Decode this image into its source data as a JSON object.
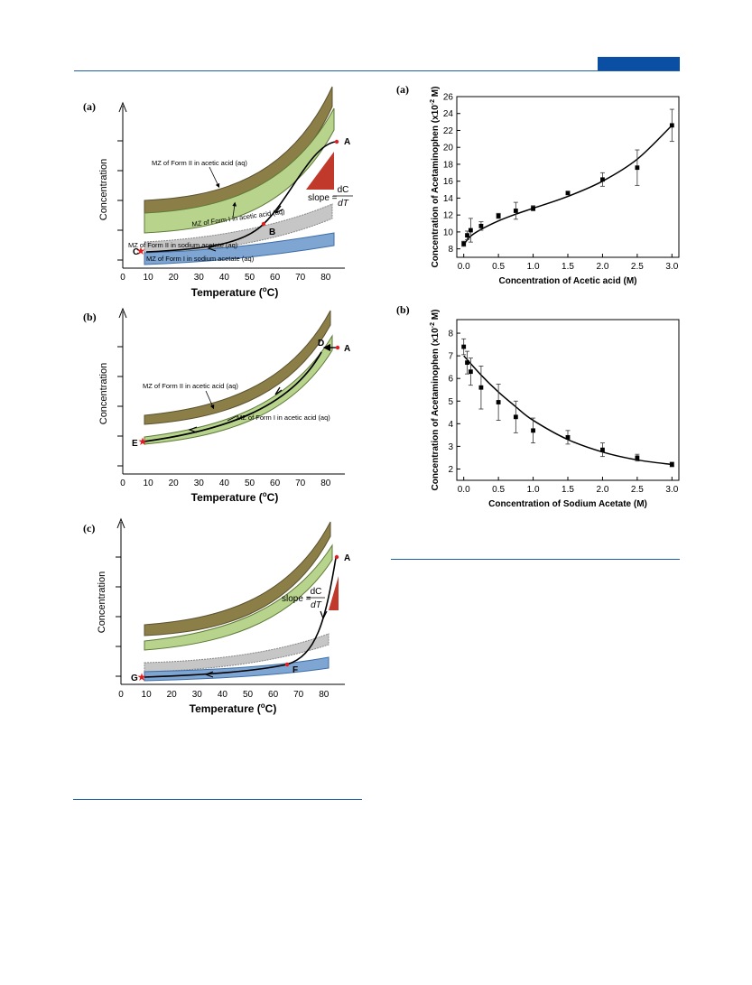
{
  "colors": {
    "rule": "#1f5ea8",
    "badge": "#0b4fa4",
    "form2_band": "#8c7e47",
    "form1_band": "#b8d48c",
    "form2_na_band": "#c6c6c6",
    "form1_na_band": "#7fa6d2",
    "slope_triangle": "#c0392b",
    "marker": "#e02020"
  },
  "left_panels": [
    {
      "tag": "(a)",
      "ylabel": "Concentration",
      "xlabel_main": "Temperature (",
      "xlabel_sup": "o",
      "xlabel_end": "C)",
      "xticks": [
        "0",
        "10",
        "20",
        "30",
        "40",
        "50",
        "60",
        "70",
        "80"
      ],
      "bands": [
        "MZ of Form II in acetic acid (aq)",
        "MZ of Form I in acetic acid (aq)",
        "MZ of Form II in sodium acetate (aq)",
        "MZ of Form I in sodium acetate (aq)"
      ],
      "points": [
        "A",
        "B",
        "C"
      ],
      "slope_label": "slope =",
      "slope_num": "dC",
      "slope_den": "dT"
    },
    {
      "tag": "(b)",
      "ylabel": "Concentration",
      "xlabel_main": "Temperature (",
      "xlabel_sup": "o",
      "xlabel_end": "C)",
      "xticks": [
        "0",
        "10",
        "20",
        "30",
        "40",
        "50",
        "60",
        "70",
        "80"
      ],
      "bands": [
        "MZ of Form II in acetic acid (aq)",
        "MZ of Form I in acetic acid (aq)"
      ],
      "points": [
        "A",
        "D",
        "E"
      ]
    },
    {
      "tag": "(c)",
      "ylabel": "Concentration",
      "xlabel_main": "Temperature (",
      "xlabel_sup": "o",
      "xlabel_end": "C)",
      "xticks": [
        "0",
        "10",
        "20",
        "30",
        "40",
        "50",
        "60",
        "70",
        "80"
      ],
      "points": [
        "A",
        "F",
        "G"
      ],
      "slope_label": "slope =",
      "slope_num": "dC",
      "slope_den": "dT"
    }
  ],
  "chart_data": [
    {
      "type": "scatter",
      "tag": "(a)",
      "xlabel_prefix": "Concentration of Acetic acid (",
      "xlabel_bold": "M",
      "xlabel_suffix": ")",
      "ylabel_prefix": "Concentration of Acetaminophen (x10",
      "ylabel_sup": "-2",
      "ylabel_suffix": " M)",
      "xlim": [
        -0.1,
        3.1
      ],
      "ylim": [
        7,
        26
      ],
      "xticks": [
        0.0,
        0.5,
        1.0,
        1.5,
        2.0,
        2.5,
        3.0
      ],
      "yticks": [
        8,
        10,
        12,
        14,
        16,
        18,
        20,
        22,
        24,
        26
      ],
      "points": [
        {
          "x": 0.0,
          "y": 8.6,
          "err": 0.3
        },
        {
          "x": 0.05,
          "y": 9.6,
          "err": 0.5
        },
        {
          "x": 0.1,
          "y": 10.2,
          "err": 1.4
        },
        {
          "x": 0.25,
          "y": 10.7,
          "err": 0.5
        },
        {
          "x": 0.5,
          "y": 11.9,
          "err": 0.3
        },
        {
          "x": 0.75,
          "y": 12.5,
          "err": 1.0
        },
        {
          "x": 1.0,
          "y": 12.8,
          "err": 0.3
        },
        {
          "x": 1.5,
          "y": 14.6,
          "err": 0.2
        },
        {
          "x": 2.0,
          "y": 16.2,
          "err": 0.8
        },
        {
          "x": 2.5,
          "y": 17.6,
          "err": 2.1
        },
        {
          "x": 3.0,
          "y": 22.6,
          "err": 1.9
        }
      ],
      "fit": [
        [
          0.0,
          8.5
        ],
        [
          0.1,
          9.5
        ],
        [
          0.25,
          10.3
        ],
        [
          0.5,
          11.3
        ],
        [
          0.75,
          12.1
        ],
        [
          1.0,
          12.8
        ],
        [
          1.5,
          14.2
        ],
        [
          2.0,
          16.0
        ],
        [
          2.5,
          18.6
        ],
        [
          3.0,
          22.6
        ]
      ]
    },
    {
      "type": "scatter",
      "tag": "(b)",
      "xlabel_prefix": "Concentration of Sodium Acetate (",
      "xlabel_bold": "M",
      "xlabel_suffix": ")",
      "ylabel_prefix": "Concentration of Acetaminophen (x10",
      "ylabel_sup": "-2",
      "ylabel_suffix": " M)",
      "xlim": [
        -0.1,
        3.1
      ],
      "ylim": [
        1.5,
        8.6
      ],
      "xticks": [
        0.0,
        0.5,
        1.0,
        1.5,
        2.0,
        2.5,
        3.0
      ],
      "yticks": [
        2,
        3,
        4,
        5,
        6,
        7,
        8
      ],
      "points": [
        {
          "x": 0.0,
          "y": 7.4,
          "err": 0.35
        },
        {
          "x": 0.05,
          "y": 6.7,
          "err": 0.5
        },
        {
          "x": 0.1,
          "y": 6.3,
          "err": 0.6
        },
        {
          "x": 0.25,
          "y": 5.6,
          "err": 0.95
        },
        {
          "x": 0.5,
          "y": 4.95,
          "err": 0.8
        },
        {
          "x": 0.75,
          "y": 4.3,
          "err": 0.7
        },
        {
          "x": 1.0,
          "y": 3.7,
          "err": 0.55
        },
        {
          "x": 1.5,
          "y": 3.4,
          "err": 0.3
        },
        {
          "x": 2.0,
          "y": 2.85,
          "err": 0.3
        },
        {
          "x": 2.5,
          "y": 2.5,
          "err": 0.15
        },
        {
          "x": 3.0,
          "y": 2.2,
          "err": 0.1
        }
      ],
      "fit": [
        [
          0.0,
          7.0
        ],
        [
          0.25,
          6.15
        ],
        [
          0.5,
          5.4
        ],
        [
          0.75,
          4.75
        ],
        [
          1.0,
          4.15
        ],
        [
          1.5,
          3.3
        ],
        [
          2.0,
          2.75
        ],
        [
          2.5,
          2.4
        ],
        [
          3.0,
          2.2
        ]
      ]
    }
  ]
}
